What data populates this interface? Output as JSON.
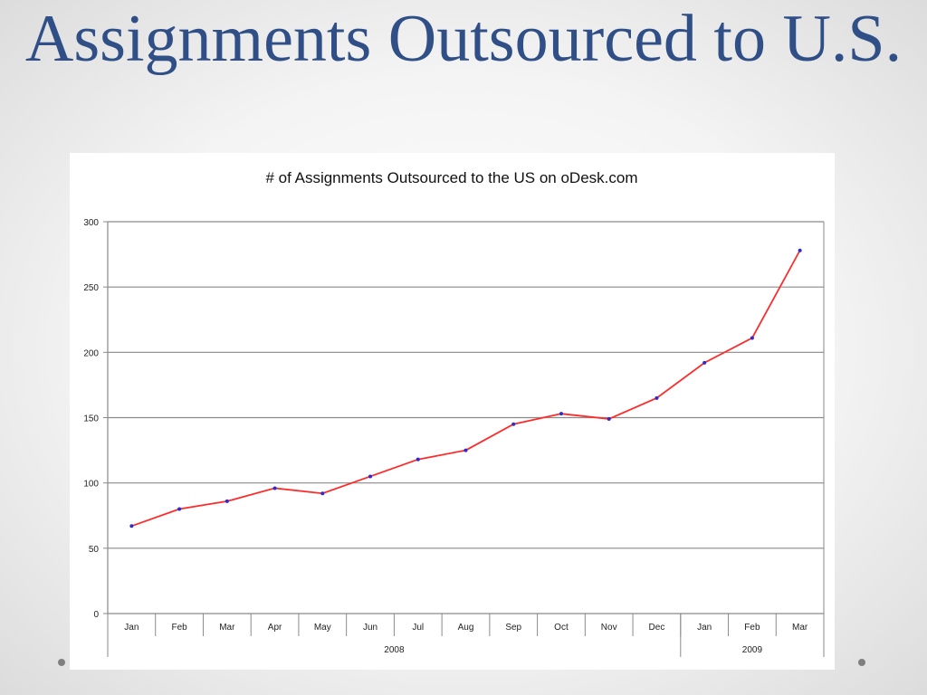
{
  "slide": {
    "title": "Assignments Outsourced to U.S.",
    "title_color": "#2f4f86"
  },
  "chart_data": {
    "type": "line",
    "title": "# of Assignments Outsourced to the US on oDesk.com",
    "xlabel": "",
    "ylabel": "",
    "categories": [
      "Jan",
      "Feb",
      "Mar",
      "Apr",
      "May",
      "Jun",
      "Jul",
      "Aug",
      "Sep",
      "Oct",
      "Nov",
      "Dec",
      "Jan",
      "Feb",
      "Mar"
    ],
    "year_groups": [
      {
        "label": "2008",
        "count": 12
      },
      {
        "label": "2009",
        "count": 3
      }
    ],
    "series": [
      {
        "values": [
          67,
          80,
          86,
          96,
          92,
          105,
          118,
          125,
          145,
          153,
          149,
          165,
          192,
          211,
          278
        ],
        "line_color": "#ff2b2b",
        "marker_color": "#2b2bd0"
      }
    ],
    "ylim": [
      0,
      300
    ],
    "yticks": [
      0,
      50,
      100,
      150,
      200,
      250,
      300
    ],
    "grid": true,
    "legend": "none"
  }
}
